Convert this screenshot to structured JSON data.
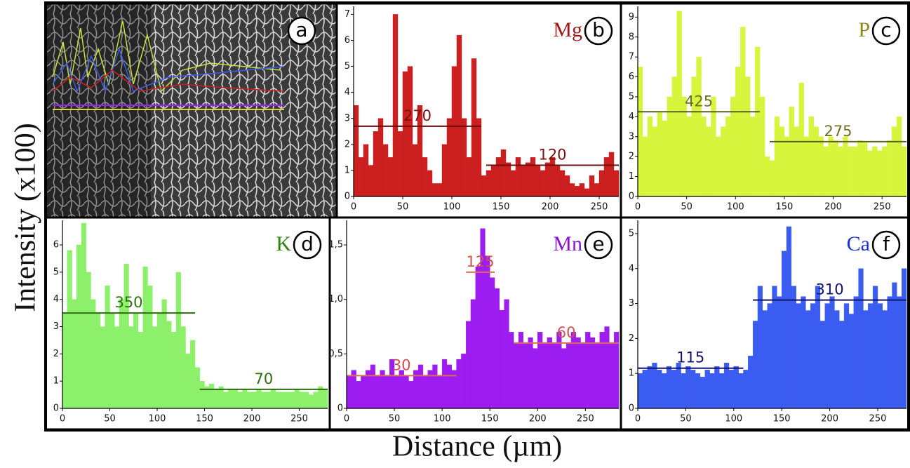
{
  "figure": {
    "ylabel": "Intensity (x100)",
    "xlabel": "Distance (µm)",
    "image_panel_label": "a"
  },
  "chart_data": [
    {
      "type": "histogram",
      "title": "Mg",
      "title_color": "#a01818",
      "panel_label": "b",
      "color": "#cc1f1f",
      "bins": [
        0,
        5,
        10,
        15,
        20,
        25,
        30,
        35,
        40,
        45,
        50,
        55,
        60,
        65,
        70,
        75,
        80,
        85,
        90,
        95,
        100,
        105,
        110,
        115,
        120,
        125,
        130,
        135,
        140,
        145,
        150,
        155,
        160,
        165,
        170,
        175,
        180,
        185,
        190,
        195,
        200,
        205,
        210,
        215,
        220,
        225,
        230,
        235,
        240,
        245,
        250,
        255,
        260,
        265,
        270
      ],
      "values": [
        3.5,
        1.5,
        2.0,
        1.2,
        2.5,
        3.0,
        2.0,
        1.5,
        7.0,
        2.5,
        4.8,
        5.0,
        2.0,
        3.5,
        1.5,
        1.0,
        0.5,
        0.5,
        2.0,
        3.0,
        5.0,
        6.2,
        3.0,
        1.5,
        5.3,
        3.0,
        0.8,
        1.0,
        1.2,
        1.5,
        1.8,
        1.3,
        1.0,
        1.5,
        1.2,
        1.3,
        1.5,
        1.2,
        1.0,
        1.3,
        1.5,
        1.2,
        1.0,
        0.8,
        0.5,
        0.4,
        0.5,
        0.3,
        0.8,
        0.5,
        1.0,
        1.5,
        1.7,
        1.0
      ],
      "xlim": [
        0,
        270
      ],
      "ylim": [
        0,
        7.2
      ],
      "xticks": [
        0,
        50,
        100,
        150,
        200,
        250
      ],
      "yticks": [
        0,
        1,
        2,
        3,
        4,
        5,
        6,
        7
      ],
      "annotation_color": "#6b0d0d",
      "annotation_text_color": "#7a1010",
      "annotations": [
        {
          "label": "270",
          "value": 2.7,
          "x_range": [
            0,
            130
          ]
        },
        {
          "label": "120",
          "value": 1.2,
          "x_range": [
            135,
            270
          ]
        }
      ]
    },
    {
      "type": "histogram",
      "title": "P",
      "title_color": "#8a8a1a",
      "panel_label": "c",
      "color": "#d8f53e",
      "bins": [
        0,
        5,
        10,
        15,
        20,
        25,
        30,
        35,
        40,
        45,
        50,
        55,
        60,
        65,
        70,
        75,
        80,
        85,
        90,
        95,
        100,
        105,
        110,
        115,
        120,
        125,
        130,
        135,
        140,
        145,
        150,
        155,
        160,
        165,
        170,
        175,
        180,
        185,
        190,
        195,
        200,
        205,
        210,
        215,
        220,
        225,
        230,
        235,
        240,
        245,
        250,
        255,
        260,
        265,
        270,
        275
      ],
      "values": [
        6.5,
        3,
        4,
        3.5,
        4.2,
        3.8,
        5,
        6,
        9.3,
        5,
        4,
        6,
        7,
        4,
        3.5,
        5,
        3,
        3.5,
        4,
        5,
        6.5,
        8.5,
        6,
        4,
        7.5,
        5,
        2,
        1.8,
        4,
        3.5,
        3,
        4.5,
        3.5,
        5.7,
        3,
        4,
        3.5,
        3,
        2.5,
        3,
        2.8,
        2.5,
        3,
        2.5,
        2.5,
        2.8,
        2.7,
        2.3,
        2.5,
        2.3,
        2.5,
        2.8,
        3.5,
        4,
        2.5
      ],
      "xlim": [
        0,
        275
      ],
      "ylim": [
        0,
        9.4
      ],
      "xticks": [
        0,
        50,
        100,
        150,
        200,
        250
      ],
      "yticks": [
        0,
        1,
        2,
        3,
        4,
        5,
        6,
        7,
        8,
        9
      ],
      "annotation_color": "#5f5f1a",
      "annotation_text_color": "#6f6f20",
      "annotations": [
        {
          "label": "425",
          "value": 4.25,
          "x_range": [
            0,
            125
          ]
        },
        {
          "label": "275",
          "value": 2.75,
          "x_range": [
            135,
            275
          ]
        }
      ]
    },
    {
      "type": "histogram",
      "title": "K",
      "title_color": "#2e8010",
      "panel_label": "d",
      "color": "#8cf06a",
      "bins": [
        0,
        5,
        10,
        15,
        20,
        25,
        30,
        35,
        40,
        45,
        50,
        55,
        60,
        65,
        70,
        75,
        80,
        85,
        90,
        95,
        100,
        105,
        110,
        115,
        120,
        125,
        130,
        135,
        140,
        145,
        150,
        155,
        160,
        165,
        170,
        175,
        180,
        185,
        190,
        195,
        200,
        205,
        210,
        215,
        220,
        225,
        230,
        235,
        240,
        245,
        250,
        255,
        260,
        265,
        270,
        275,
        280
      ],
      "values": [
        3.5,
        5.8,
        4,
        6,
        6.8,
        5,
        4,
        3.5,
        3,
        4.5,
        3.5,
        3,
        4,
        5.3,
        3,
        3.5,
        2.8,
        5.2,
        4.5,
        3,
        3.5,
        4,
        3.2,
        2.8,
        5,
        3,
        2,
        2.5,
        1.5,
        1,
        0.8,
        0.9,
        0.7,
        0.8,
        0.6,
        0.7,
        0.7,
        0.6,
        0.7,
        0.6,
        0.6,
        0.7,
        0.6,
        0.6,
        0.7,
        0.6,
        0.6,
        0.6,
        0.6,
        0.7,
        0.6,
        0.6,
        0.5,
        0.6,
        0.8,
        0.7
      ],
      "xlim": [
        0,
        280
      ],
      "ylim": [
        0,
        6.8
      ],
      "xticks": [
        0,
        50,
        100,
        150,
        200,
        250
      ],
      "yticks": [
        0,
        1,
        2,
        3,
        4,
        5,
        6
      ],
      "annotation_color": "#2f6b0f",
      "annotation_text_color": "#2e7010",
      "annotations": [
        {
          "label": "350",
          "value": 3.5,
          "x_range": [
            0,
            140
          ]
        },
        {
          "label": "70",
          "value": 0.7,
          "x_range": [
            145,
            280
          ]
        }
      ]
    },
    {
      "type": "histogram",
      "title": "Mn",
      "title_color": "#8a10d8",
      "panel_label": "e",
      "color": "#9d1cf0",
      "bins": [
        0,
        5,
        10,
        15,
        20,
        25,
        30,
        35,
        40,
        45,
        50,
        55,
        60,
        65,
        70,
        75,
        80,
        85,
        90,
        95,
        100,
        105,
        110,
        115,
        120,
        125,
        130,
        135,
        140,
        145,
        150,
        155,
        160,
        165,
        170,
        175,
        180,
        185,
        190,
        195,
        200,
        205,
        210,
        215,
        220,
        225,
        230,
        235,
        240,
        245,
        250,
        255,
        260,
        265,
        270,
        275,
        280,
        285
      ],
      "values": [
        0.3,
        0.35,
        0.25,
        0.3,
        0.35,
        0.4,
        0.3,
        0.35,
        0.3,
        0.45,
        0.3,
        0.35,
        0.3,
        0.25,
        0.35,
        0.4,
        0.3,
        0.35,
        0.4,
        0.3,
        0.45,
        0.4,
        0.35,
        0.45,
        0.5,
        0.8,
        1.0,
        1.3,
        1.65,
        1.4,
        1.2,
        1.1,
        0.9,
        1.0,
        0.7,
        0.6,
        0.7,
        0.6,
        0.65,
        0.55,
        0.7,
        0.6,
        0.65,
        0.6,
        0.7,
        0.55,
        0.6,
        0.7,
        0.65,
        0.6,
        0.7,
        0.65,
        0.6,
        0.7,
        0.75,
        0.6,
        0.7
      ],
      "xlim": [
        0,
        285
      ],
      "ylim": [
        0,
        1.7
      ],
      "xticks": [
        0,
        50,
        100,
        150,
        200,
        250
      ],
      "yticks": [
        0,
        {
          "value": 0.5,
          "label": "0,5"
        },
        {
          "value": 1.0,
          "label": "1,0"
        },
        {
          "value": 1.5,
          "label": "1,5"
        }
      ],
      "annotation_color": "#e06a5a",
      "annotation_text_color": "#d05050",
      "annotations": [
        {
          "label": "30",
          "value": 0.3,
          "x_range": [
            0,
            115
          ]
        },
        {
          "label": "125",
          "value": 1.25,
          "x_range": [
            125,
            155
          ]
        },
        {
          "label": "60",
          "value": 0.6,
          "x_range": [
            175,
            285
          ]
        }
      ]
    },
    {
      "type": "histogram",
      "title": "Ca",
      "title_color": "#1e2ee0",
      "panel_label": "f",
      "color": "#3b5cf0",
      "bins": [
        0,
        5,
        10,
        15,
        20,
        25,
        30,
        35,
        40,
        45,
        50,
        55,
        60,
        65,
        70,
        75,
        80,
        85,
        90,
        95,
        100,
        105,
        110,
        115,
        120,
        125,
        130,
        135,
        140,
        145,
        150,
        155,
        160,
        165,
        170,
        175,
        180,
        185,
        190,
        195,
        200,
        205,
        210,
        215,
        220,
        225,
        230,
        235,
        240,
        245,
        250,
        255,
        260,
        265,
        270,
        275,
        280
      ],
      "values": [
        1,
        1.1,
        1.2,
        1.3,
        1.1,
        1,
        1.2,
        1.1,
        1.3,
        1,
        1.2,
        1.1,
        1,
        0.9,
        1.1,
        1,
        1.2,
        1,
        1.3,
        1.1,
        1.2,
        1,
        1.1,
        1.5,
        2.5,
        3.5,
        2.8,
        3,
        3.5,
        3.2,
        4.5,
        5.2,
        3.5,
        3,
        3.2,
        2.8,
        3,
        3.5,
        2.5,
        3,
        3.2,
        2.8,
        2.5,
        3,
        2.7,
        3.2,
        4,
        2.8,
        3,
        3.5,
        3,
        2.8,
        3.2,
        3.6,
        3.2,
        4
      ],
      "xlim": [
        0,
        280
      ],
      "ylim": [
        0,
        5.3
      ],
      "xticks": [
        0,
        50,
        100,
        150,
        200,
        250
      ],
      "yticks": [
        0,
        1,
        2,
        3,
        4,
        5
      ],
      "annotation_color": "#141470",
      "annotation_text_color": "#141470",
      "annotations": [
        {
          "label": "115",
          "value": 1.15,
          "x_range": [
            0,
            110
          ]
        },
        {
          "label": "310",
          "value": 3.1,
          "x_range": [
            120,
            280
          ]
        }
      ]
    }
  ]
}
